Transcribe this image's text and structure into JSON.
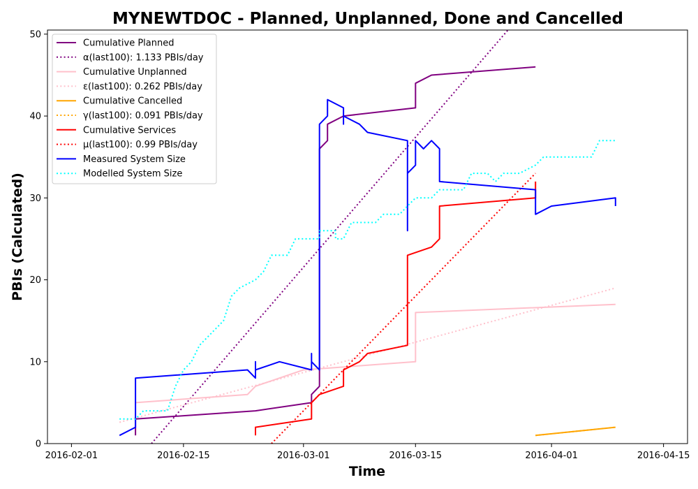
{
  "chart_data": {
    "type": "line",
    "title": "MYNEWTDOC - Planned, Unplanned, Done  and Cancelled",
    "xlabel": "Time",
    "ylabel": "PBIs (Calculated)",
    "xlim": [
      "2016-01-29",
      "2016-04-18"
    ],
    "ylim": [
      0,
      50.5
    ],
    "x_ticks": [
      "2016-02-01",
      "2016-02-15",
      "2016-03-01",
      "2016-03-15",
      "2016-04-01",
      "2016-04-15"
    ],
    "y_ticks": [
      0,
      10,
      20,
      30,
      40,
      50
    ],
    "grid": false,
    "legend_position": "top-left",
    "series": [
      {
        "name": "Cumulative Planned",
        "color": "#800080",
        "style": "solid",
        "points": [
          [
            "2016-02-09",
            1
          ],
          [
            "2016-02-09",
            3
          ],
          [
            "2016-02-24",
            4
          ],
          [
            "2016-03-02",
            5
          ],
          [
            "2016-03-02",
            6
          ],
          [
            "2016-03-03",
            7
          ],
          [
            "2016-03-03",
            35
          ],
          [
            "2016-03-03",
            36
          ],
          [
            "2016-03-04",
            37
          ],
          [
            "2016-03-04",
            39
          ],
          [
            "2016-03-06",
            40
          ],
          [
            "2016-03-15",
            41
          ],
          [
            "2016-03-15",
            44
          ],
          [
            "2016-03-17",
            45
          ],
          [
            "2016-03-30",
            46
          ]
        ]
      },
      {
        "name": "α(last100): 1.133 PBIs/day",
        "color": "#800080",
        "style": "dotted",
        "points": [
          [
            "2016-02-11",
            0
          ],
          [
            "2016-03-27",
            51
          ]
        ]
      },
      {
        "name": "Cumulative Unplanned",
        "color": "#ffc0cb",
        "style": "solid",
        "points": [
          [
            "2016-02-09",
            5
          ],
          [
            "2016-02-23",
            6
          ],
          [
            "2016-02-24",
            7
          ],
          [
            "2016-02-27",
            8
          ],
          [
            "2016-03-01",
            9
          ],
          [
            "2016-03-15",
            10
          ],
          [
            "2016-03-15",
            16
          ],
          [
            "2016-04-09",
            17
          ]
        ]
      },
      {
        "name": "ε(last100): 0.262 PBIs/day",
        "color": "#ffc0cb",
        "style": "dotted",
        "points": [
          [
            "2016-02-07",
            2.6
          ],
          [
            "2016-04-09",
            19
          ]
        ]
      },
      {
        "name": "Cumulative Cancelled",
        "color": "#ffa500",
        "style": "solid",
        "points": [
          [
            "2016-03-30",
            1
          ],
          [
            "2016-04-09",
            2
          ]
        ]
      },
      {
        "name": "γ(last100): 0.091 PBIs/day",
        "color": "#ffa500",
        "style": "dotted",
        "points": [
          [
            "2016-03-30",
            1
          ],
          [
            "2016-04-09",
            2
          ]
        ]
      },
      {
        "name": "Cumulative Services",
        "color": "#ff0000",
        "style": "solid",
        "points": [
          [
            "2016-02-24",
            1
          ],
          [
            "2016-02-24",
            2
          ],
          [
            "2016-03-02",
            3
          ],
          [
            "2016-03-02",
            5
          ],
          [
            "2016-03-03",
            6
          ],
          [
            "2016-03-06",
            7
          ],
          [
            "2016-03-06",
            9
          ],
          [
            "2016-03-08",
            10
          ],
          [
            "2016-03-09",
            11
          ],
          [
            "2016-03-14",
            12
          ],
          [
            "2016-03-14",
            23
          ],
          [
            "2016-03-17",
            24
          ],
          [
            "2016-03-18",
            25
          ],
          [
            "2016-03-18",
            26
          ],
          [
            "2016-03-18",
            29
          ],
          [
            "2016-03-30",
            30
          ],
          [
            "2016-03-30",
            32
          ]
        ]
      },
      {
        "name": "μ(last100): 0.99 PBIs/day",
        "color": "#ff0000",
        "style": "dotted",
        "points": [
          [
            "2016-02-26",
            0
          ],
          [
            "2016-03-30",
            33
          ]
        ]
      },
      {
        "name": "Measured System Size",
        "color": "#0000ff",
        "style": "solid",
        "points": [
          [
            "2016-02-07",
            1
          ],
          [
            "2016-02-09",
            2
          ],
          [
            "2016-02-09",
            8
          ],
          [
            "2016-02-23",
            9
          ],
          [
            "2016-02-24",
            8
          ],
          [
            "2016-02-24",
            10
          ],
          [
            "2016-02-24",
            9
          ],
          [
            "2016-02-27",
            10
          ],
          [
            "2016-03-02",
            9
          ],
          [
            "2016-03-02",
            11
          ],
          [
            "2016-03-02",
            9
          ],
          [
            "2016-03-02",
            10
          ],
          [
            "2016-03-03",
            9
          ],
          [
            "2016-03-03",
            10
          ],
          [
            "2016-03-03",
            38
          ],
          [
            "2016-03-03",
            39
          ],
          [
            "2016-03-04",
            40
          ],
          [
            "2016-03-04",
            42
          ],
          [
            "2016-03-06",
            41
          ],
          [
            "2016-03-06",
            39
          ],
          [
            "2016-03-06",
            40
          ],
          [
            "2016-03-08",
            39
          ],
          [
            "2016-03-09",
            38
          ],
          [
            "2016-03-14",
            37
          ],
          [
            "2016-03-14",
            26
          ],
          [
            "2016-03-14",
            27
          ],
          [
            "2016-03-14",
            33
          ],
          [
            "2016-03-15",
            34
          ],
          [
            "2016-03-15",
            37
          ],
          [
            "2016-03-16",
            36
          ],
          [
            "2016-03-17",
            37
          ],
          [
            "2016-03-18",
            36
          ],
          [
            "2016-03-18",
            35
          ],
          [
            "2016-03-18",
            32
          ],
          [
            "2016-03-30",
            31
          ],
          [
            "2016-03-30",
            28
          ],
          [
            "2016-04-01",
            29
          ],
          [
            "2016-04-09",
            30
          ],
          [
            "2016-04-09",
            29
          ]
        ]
      },
      {
        "name": "Modelled System Size",
        "color": "#00ffff",
        "style": "dotted",
        "points": [
          [
            "2016-02-07",
            3
          ],
          [
            "2016-02-09",
            3
          ],
          [
            "2016-02-10",
            4
          ],
          [
            "2016-02-13",
            4
          ],
          [
            "2016-02-14",
            7
          ],
          [
            "2016-02-15",
            9
          ],
          [
            "2016-02-16",
            10
          ],
          [
            "2016-02-17",
            12
          ],
          [
            "2016-02-18",
            13
          ],
          [
            "2016-02-20",
            15
          ],
          [
            "2016-02-21",
            18
          ],
          [
            "2016-02-22",
            19
          ],
          [
            "2016-02-24",
            20
          ],
          [
            "2016-02-25",
            21
          ],
          [
            "2016-02-26",
            23
          ],
          [
            "2016-02-28",
            23
          ],
          [
            "2016-02-29",
            25
          ],
          [
            "2016-03-03",
            25
          ],
          [
            "2016-03-03",
            26
          ],
          [
            "2016-03-05",
            26
          ],
          [
            "2016-03-05",
            25
          ],
          [
            "2016-03-06",
            25
          ],
          [
            "2016-03-07",
            27
          ],
          [
            "2016-03-10",
            27
          ],
          [
            "2016-03-11",
            28
          ],
          [
            "2016-03-13",
            28
          ],
          [
            "2016-03-14",
            29
          ],
          [
            "2016-03-15",
            30
          ],
          [
            "2016-03-17",
            30
          ],
          [
            "2016-03-18",
            31
          ],
          [
            "2016-03-21",
            31
          ],
          [
            "2016-03-22",
            33
          ],
          [
            "2016-03-24",
            33
          ],
          [
            "2016-03-25",
            32
          ],
          [
            "2016-03-26",
            33
          ],
          [
            "2016-03-28",
            33
          ],
          [
            "2016-03-30",
            34
          ],
          [
            "2016-03-31",
            35
          ],
          [
            "2016-04-06",
            35
          ],
          [
            "2016-04-07",
            37
          ],
          [
            "2016-04-09",
            37
          ]
        ]
      }
    ]
  }
}
